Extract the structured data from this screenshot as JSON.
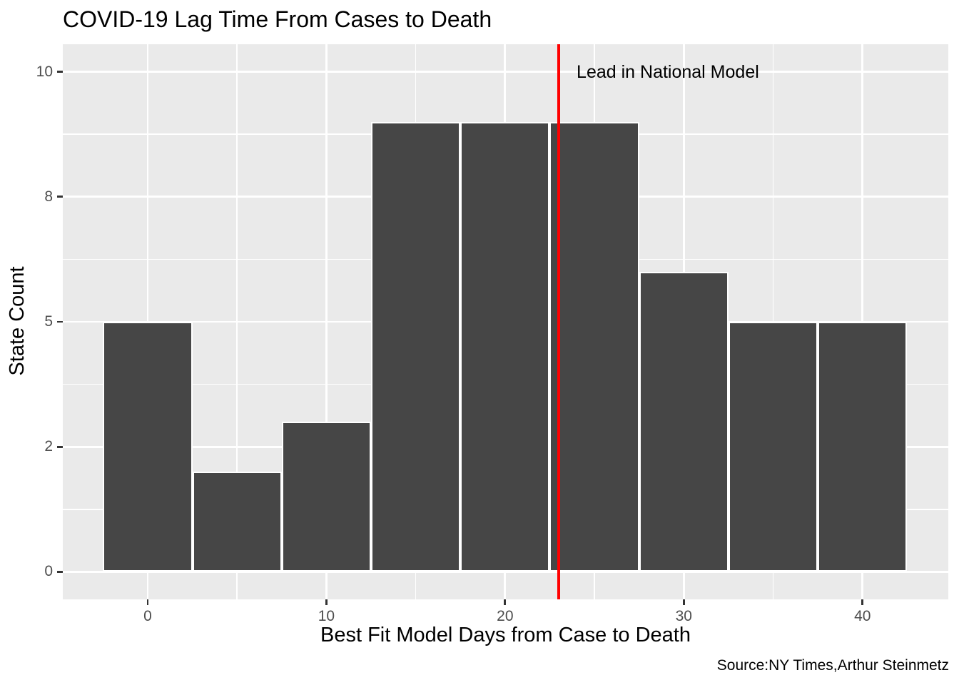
{
  "figure": {
    "title": "COVID-19 Lag Time From Cases to Death",
    "caption": "Source:NY Times,Arthur Steinmetz"
  },
  "chart_data": {
    "type": "bar",
    "subtype": "histogram",
    "title": "COVID-19 Lag Time From Cases to Death",
    "xlabel": "Best Fit Model Days from Case to Death",
    "ylabel": "State Count",
    "caption": "Source:NY Times,Arthur Steinmetz",
    "bin_width": 5,
    "bin_centers": [
      0,
      5,
      10,
      15,
      20,
      25,
      30,
      35,
      40
    ],
    "values": [
      5,
      2,
      3,
      9,
      9,
      9,
      6,
      5,
      5
    ],
    "x_ticks": [
      {
        "value": 0,
        "label": "0"
      },
      {
        "value": 10,
        "label": "10"
      },
      {
        "value": 20,
        "label": "20"
      },
      {
        "value": 30,
        "label": "30"
      },
      {
        "value": 40,
        "label": "40"
      }
    ],
    "y_ticks": [
      {
        "value": 0,
        "label": "0"
      },
      {
        "value": 2.5,
        "label": "2"
      },
      {
        "value": 5,
        "label": "5"
      },
      {
        "value": 7.5,
        "label": "8"
      },
      {
        "value": 10,
        "label": "10"
      }
    ],
    "x_minor": [
      5,
      15,
      25,
      35
    ],
    "y_minor": [
      1.25,
      3.75,
      6.25,
      8.75
    ],
    "xlim": [
      -4.75,
      44.8
    ],
    "ylim": [
      -0.55,
      10.55
    ],
    "grid": true,
    "legend": "none",
    "vline": {
      "x": 23,
      "color": "#FF0000",
      "label": "Lead in National Model",
      "label_x": 24,
      "label_y": 10
    },
    "colors": {
      "bar_fill": "#464646",
      "bar_stroke": "#FFFFFF",
      "panel_bg": "#EAEAEA",
      "gridline": "#FFFFFF",
      "tick_mark": "#333333",
      "tick_label": "#4D4D4D",
      "text": "#000000",
      "background": "#FFFFFF"
    }
  }
}
